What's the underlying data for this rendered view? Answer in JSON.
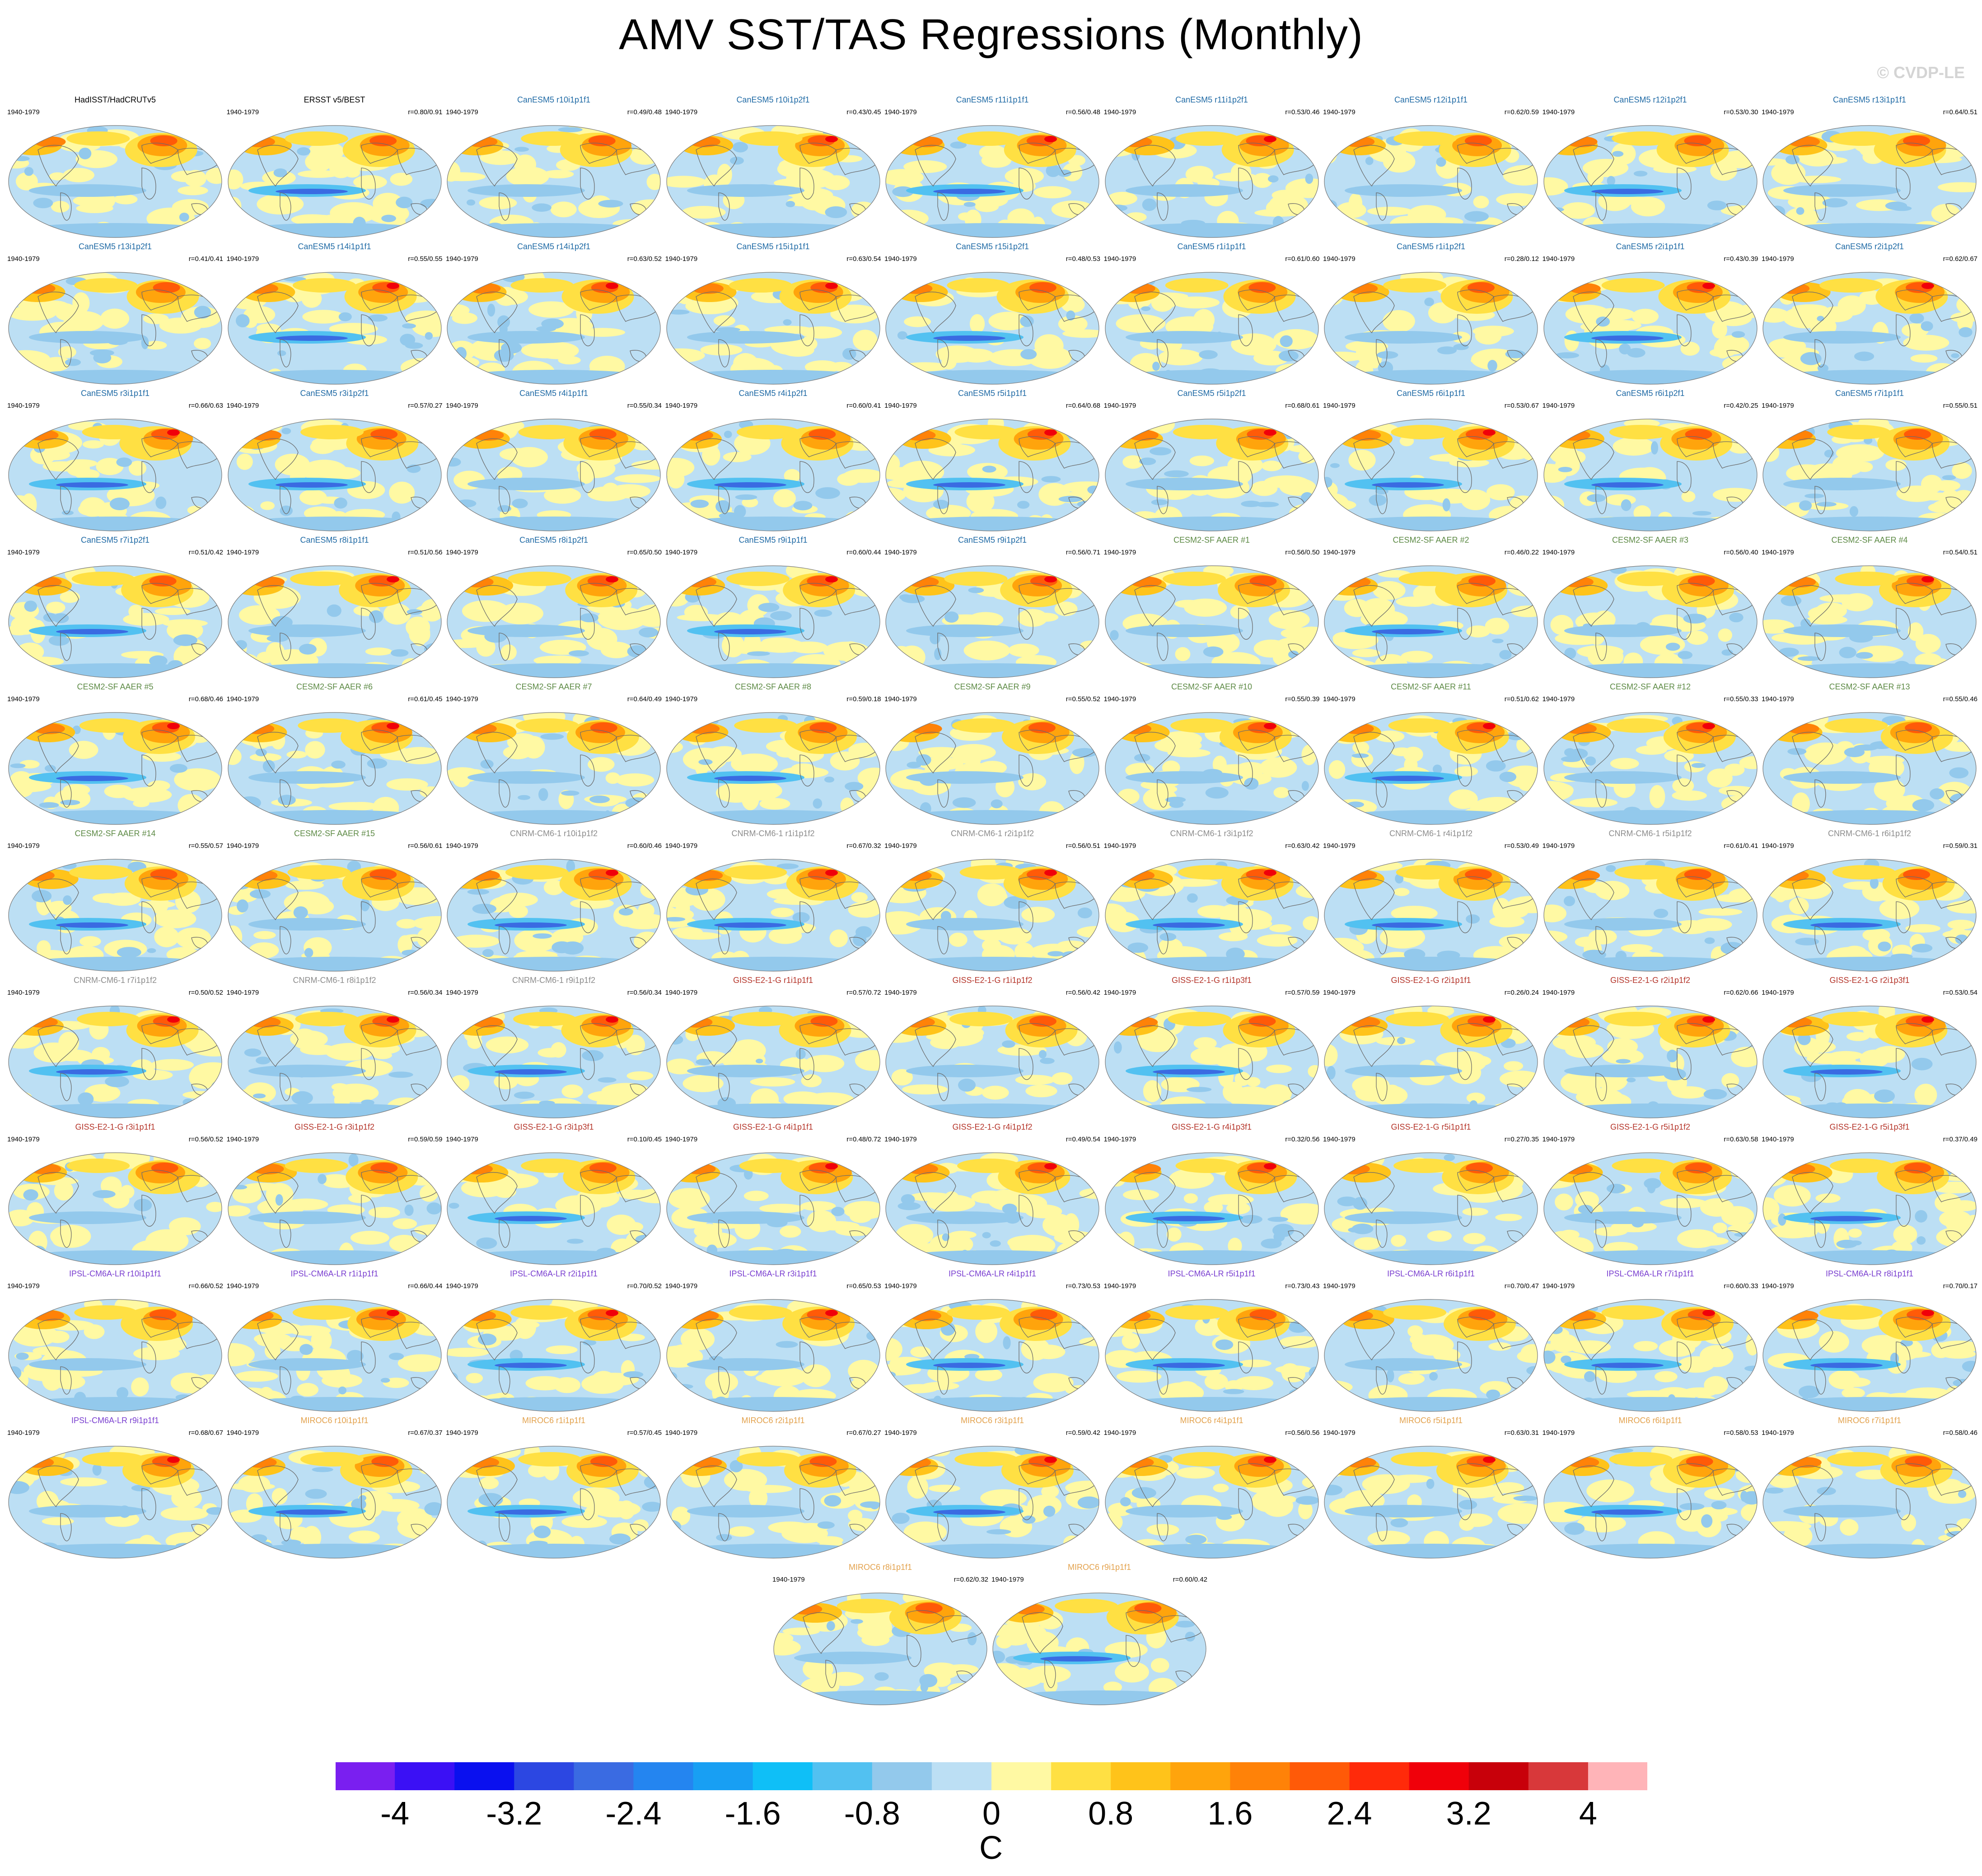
{
  "title": "AMV SST/TAS Regressions (Monthly)",
  "watermark": "© CVDP-LE",
  "period": "1940-1979",
  "model_colors": {
    "obs": "#000000",
    "CanESM5": "#1f6aa5",
    "CESM2-SF AAER": "#5d8a45",
    "CNRM-CM6-1": "#8c8c8c",
    "GISS-E2-1-G": "#b5352a",
    "IPSL-CM6A-LR": "#7a3fd0",
    "MIROC6": "#e3a24d"
  },
  "chart_data": {
    "type": "heatmap",
    "description_units": "C",
    "colorbar": {
      "units": "C",
      "tick_labels": [
        "-4",
        "-3.2",
        "-2.4",
        "-1.6",
        "-0.8",
        "0",
        "0.8",
        "1.6",
        "2.4",
        "3.2",
        "4"
      ],
      "tick_values": [
        -4,
        -3.2,
        -2.4,
        -1.6,
        -0.8,
        0,
        0.8,
        1.6,
        2.4,
        3.2,
        4
      ],
      "levels": [
        -4.4,
        -4,
        -3.6,
        -3.2,
        -2.8,
        -2.4,
        -2,
        -1.6,
        -1.2,
        -0.8,
        -0.4,
        0,
        0.4,
        0.8,
        1.2,
        1.6,
        2,
        2.4,
        2.8,
        3.2,
        3.6,
        4,
        4.4
      ],
      "colors": [
        "#7a1ff0",
        "#3b10f5",
        "#0a10ef",
        "#2c47e2",
        "#3a6be2",
        "#2485f0",
        "#189ff3",
        "#0fbff7",
        "#52c1f1",
        "#93c9ec",
        "#bcdff4",
        "#fff9a3",
        "#ffe043",
        "#ffc31a",
        "#ffa40c",
        "#ff8208",
        "#ff5a08",
        "#ff2a0a",
        "#f0000a",
        "#c8000a",
        "#d8383a",
        "#ffb4b8"
      ]
    },
    "panels": [
      {
        "title": "HadISST/HadCRUTv5",
        "model": "obs",
        "corr": ""
      },
      {
        "title": "ERSST v5/BEST",
        "model": "obs",
        "corr": "r=0.80/0.91"
      },
      {
        "title": "CanESM5 r10i1p1f1",
        "model": "CanESM5",
        "corr": "r=0.49/0.48"
      },
      {
        "title": "CanESM5 r10i1p2f1",
        "model": "CanESM5",
        "corr": "r=0.43/0.45"
      },
      {
        "title": "CanESM5 r11i1p1f1",
        "model": "CanESM5",
        "corr": "r=0.56/0.48"
      },
      {
        "title": "CanESM5 r11i1p2f1",
        "model": "CanESM5",
        "corr": "r=0.53/0.46"
      },
      {
        "title": "CanESM5 r12i1p1f1",
        "model": "CanESM5",
        "corr": "r=0.62/0.59"
      },
      {
        "title": "CanESM5 r12i1p2f1",
        "model": "CanESM5",
        "corr": "r=0.53/0.30"
      },
      {
        "title": "CanESM5 r13i1p1f1",
        "model": "CanESM5",
        "corr": "r=0.64/0.51"
      },
      {
        "title": "CanESM5 r13i1p2f1",
        "model": "CanESM5",
        "corr": "r=0.41/0.41"
      },
      {
        "title": "CanESM5 r14i1p1f1",
        "model": "CanESM5",
        "corr": "r=0.55/0.55"
      },
      {
        "title": "CanESM5 r14i1p2f1",
        "model": "CanESM5",
        "corr": "r=0.63/0.52"
      },
      {
        "title": "CanESM5 r15i1p1f1",
        "model": "CanESM5",
        "corr": "r=0.63/0.54"
      },
      {
        "title": "CanESM5 r15i1p2f1",
        "model": "CanESM5",
        "corr": "r=0.48/0.53"
      },
      {
        "title": "CanESM5 r1i1p1f1",
        "model": "CanESM5",
        "corr": "r=0.61/0.60"
      },
      {
        "title": "CanESM5 r1i1p2f1",
        "model": "CanESM5",
        "corr": "r=0.28/0.12"
      },
      {
        "title": "CanESM5 r2i1p1f1",
        "model": "CanESM5",
        "corr": "r=0.43/0.39"
      },
      {
        "title": "CanESM5 r2i1p2f1",
        "model": "CanESM5",
        "corr": "r=0.62/0.67"
      },
      {
        "title": "CanESM5 r3i1p1f1",
        "model": "CanESM5",
        "corr": "r=0.66/0.63"
      },
      {
        "title": "CanESM5 r3i1p2f1",
        "model": "CanESM5",
        "corr": "r=0.57/0.27"
      },
      {
        "title": "CanESM5 r4i1p1f1",
        "model": "CanESM5",
        "corr": "r=0.55/0.34"
      },
      {
        "title": "CanESM5 r4i1p2f1",
        "model": "CanESM5",
        "corr": "r=0.60/0.41"
      },
      {
        "title": "CanESM5 r5i1p1f1",
        "model": "CanESM5",
        "corr": "r=0.64/0.68"
      },
      {
        "title": "CanESM5 r5i1p2f1",
        "model": "CanESM5",
        "corr": "r=0.68/0.61"
      },
      {
        "title": "CanESM5 r6i1p1f1",
        "model": "CanESM5",
        "corr": "r=0.53/0.67"
      },
      {
        "title": "CanESM5 r6i1p2f1",
        "model": "CanESM5",
        "corr": "r=0.42/0.25"
      },
      {
        "title": "CanESM5 r7i1p1f1",
        "model": "CanESM5",
        "corr": "r=0.55/0.51"
      },
      {
        "title": "CanESM5 r7i1p2f1",
        "model": "CanESM5",
        "corr": "r=0.51/0.42"
      },
      {
        "title": "CanESM5 r8i1p1f1",
        "model": "CanESM5",
        "corr": "r=0.51/0.56"
      },
      {
        "title": "CanESM5 r8i1p2f1",
        "model": "CanESM5",
        "corr": "r=0.65/0.50"
      },
      {
        "title": "CanESM5 r9i1p1f1",
        "model": "CanESM5",
        "corr": "r=0.60/0.44"
      },
      {
        "title": "CanESM5 r9i1p2f1",
        "model": "CanESM5",
        "corr": "r=0.56/0.71"
      },
      {
        "title": "CESM2-SF AAER #1",
        "model": "CESM2-SF AAER",
        "corr": "r=0.56/0.50"
      },
      {
        "title": "CESM2-SF AAER #2",
        "model": "CESM2-SF AAER",
        "corr": "r=0.46/0.22"
      },
      {
        "title": "CESM2-SF AAER #3",
        "model": "CESM2-SF AAER",
        "corr": "r=0.56/0.40"
      },
      {
        "title": "CESM2-SF AAER #4",
        "model": "CESM2-SF AAER",
        "corr": "r=0.54/0.51"
      },
      {
        "title": "CESM2-SF AAER #5",
        "model": "CESM2-SF AAER",
        "corr": "r=0.68/0.46"
      },
      {
        "title": "CESM2-SF AAER #6",
        "model": "CESM2-SF AAER",
        "corr": "r=0.61/0.45"
      },
      {
        "title": "CESM2-SF AAER #7",
        "model": "CESM2-SF AAER",
        "corr": "r=0.64/0.49"
      },
      {
        "title": "CESM2-SF AAER #8",
        "model": "CESM2-SF AAER",
        "corr": "r=0.59/0.18"
      },
      {
        "title": "CESM2-SF AAER #9",
        "model": "CESM2-SF AAER",
        "corr": "r=0.55/0.52"
      },
      {
        "title": "CESM2-SF AAER #10",
        "model": "CESM2-SF AAER",
        "corr": "r=0.55/0.39"
      },
      {
        "title": "CESM2-SF AAER #11",
        "model": "CESM2-SF AAER",
        "corr": "r=0.51/0.62"
      },
      {
        "title": "CESM2-SF AAER #12",
        "model": "CESM2-SF AAER",
        "corr": "r=0.55/0.33"
      },
      {
        "title": "CESM2-SF AAER #13",
        "model": "CESM2-SF AAER",
        "corr": "r=0.55/0.46"
      },
      {
        "title": "CESM2-SF AAER #14",
        "model": "CESM2-SF AAER",
        "corr": "r=0.55/0.57"
      },
      {
        "title": "CESM2-SF AAER #15",
        "model": "CESM2-SF AAER",
        "corr": "r=0.56/0.61"
      },
      {
        "title": "CNRM-CM6-1 r10i1p1f2",
        "model": "CNRM-CM6-1",
        "corr": "r=0.60/0.46"
      },
      {
        "title": "CNRM-CM6-1 r1i1p1f2",
        "model": "CNRM-CM6-1",
        "corr": "r=0.67/0.32"
      },
      {
        "title": "CNRM-CM6-1 r2i1p1f2",
        "model": "CNRM-CM6-1",
        "corr": "r=0.56/0.51"
      },
      {
        "title": "CNRM-CM6-1 r3i1p1f2",
        "model": "CNRM-CM6-1",
        "corr": "r=0.63/0.42"
      },
      {
        "title": "CNRM-CM6-1 r4i1p1f2",
        "model": "CNRM-CM6-1",
        "corr": "r=0.53/0.49"
      },
      {
        "title": "CNRM-CM6-1 r5i1p1f2",
        "model": "CNRM-CM6-1",
        "corr": "r=0.61/0.41"
      },
      {
        "title": "CNRM-CM6-1 r6i1p1f2",
        "model": "CNRM-CM6-1",
        "corr": "r=0.59/0.31"
      },
      {
        "title": "CNRM-CM6-1 r7i1p1f2",
        "model": "CNRM-CM6-1",
        "corr": "r=0.50/0.52"
      },
      {
        "title": "CNRM-CM6-1 r8i1p1f2",
        "model": "CNRM-CM6-1",
        "corr": "r=0.56/0.34"
      },
      {
        "title": "CNRM-CM6-1 r9i1p1f2",
        "model": "CNRM-CM6-1",
        "corr": "r=0.56/0.34"
      },
      {
        "title": "GISS-E2-1-G r1i1p1f1",
        "model": "GISS-E2-1-G",
        "corr": "r=0.57/0.72"
      },
      {
        "title": "GISS-E2-1-G r1i1p1f2",
        "model": "GISS-E2-1-G",
        "corr": "r=0.56/0.42"
      },
      {
        "title": "GISS-E2-1-G r1i1p3f1",
        "model": "GISS-E2-1-G",
        "corr": "r=0.57/0.59"
      },
      {
        "title": "GISS-E2-1-G r2i1p1f1",
        "model": "GISS-E2-1-G",
        "corr": "r=0.26/0.24"
      },
      {
        "title": "GISS-E2-1-G r2i1p1f2",
        "model": "GISS-E2-1-G",
        "corr": "r=0.62/0.66"
      },
      {
        "title": "GISS-E2-1-G r2i1p3f1",
        "model": "GISS-E2-1-G",
        "corr": "r=0.53/0.54"
      },
      {
        "title": "GISS-E2-1-G r3i1p1f1",
        "model": "GISS-E2-1-G",
        "corr": "r=0.56/0.52"
      },
      {
        "title": "GISS-E2-1-G r3i1p1f2",
        "model": "GISS-E2-1-G",
        "corr": "r=0.59/0.59"
      },
      {
        "title": "GISS-E2-1-G r3i1p3f1",
        "model": "GISS-E2-1-G",
        "corr": "r=0.10/0.45"
      },
      {
        "title": "GISS-E2-1-G r4i1p1f1",
        "model": "GISS-E2-1-G",
        "corr": "r=0.48/0.72"
      },
      {
        "title": "GISS-E2-1-G r4i1p1f2",
        "model": "GISS-E2-1-G",
        "corr": "r=0.49/0.54"
      },
      {
        "title": "GISS-E2-1-G r4i1p3f1",
        "model": "GISS-E2-1-G",
        "corr": "r=0.32/0.56"
      },
      {
        "title": "GISS-E2-1-G r5i1p1f1",
        "model": "GISS-E2-1-G",
        "corr": "r=0.27/0.35"
      },
      {
        "title": "GISS-E2-1-G r5i1p1f2",
        "model": "GISS-E2-1-G",
        "corr": "r=0.63/0.58"
      },
      {
        "title": "GISS-E2-1-G r5i1p3f1",
        "model": "GISS-E2-1-G",
        "corr": "r=0.37/0.49"
      },
      {
        "title": "IPSL-CM6A-LR r10i1p1f1",
        "model": "IPSL-CM6A-LR",
        "corr": "r=0.66/0.52"
      },
      {
        "title": "IPSL-CM6A-LR r1i1p1f1",
        "model": "IPSL-CM6A-LR",
        "corr": "r=0.66/0.44"
      },
      {
        "title": "IPSL-CM6A-LR r2i1p1f1",
        "model": "IPSL-CM6A-LR",
        "corr": "r=0.70/0.52"
      },
      {
        "title": "IPSL-CM6A-LR r3i1p1f1",
        "model": "IPSL-CM6A-LR",
        "corr": "r=0.65/0.53"
      },
      {
        "title": "IPSL-CM6A-LR r4i1p1f1",
        "model": "IPSL-CM6A-LR",
        "corr": "r=0.73/0.53"
      },
      {
        "title": "IPSL-CM6A-LR r5i1p1f1",
        "model": "IPSL-CM6A-LR",
        "corr": "r=0.73/0.43"
      },
      {
        "title": "IPSL-CM6A-LR r6i1p1f1",
        "model": "IPSL-CM6A-LR",
        "corr": "r=0.70/0.47"
      },
      {
        "title": "IPSL-CM6A-LR r7i1p1f1",
        "model": "IPSL-CM6A-LR",
        "corr": "r=0.60/0.33"
      },
      {
        "title": "IPSL-CM6A-LR r8i1p1f1",
        "model": "IPSL-CM6A-LR",
        "corr": "r=0.70/0.17"
      },
      {
        "title": "IPSL-CM6A-LR r9i1p1f1",
        "model": "IPSL-CM6A-LR",
        "corr": "r=0.68/0.67"
      },
      {
        "title": "MIROC6 r10i1p1f1",
        "model": "MIROC6",
        "corr": "r=0.67/0.37"
      },
      {
        "title": "MIROC6 r1i1p1f1",
        "model": "MIROC6",
        "corr": "r=0.57/0.45"
      },
      {
        "title": "MIROC6 r2i1p1f1",
        "model": "MIROC6",
        "corr": "r=0.67/0.27"
      },
      {
        "title": "MIROC6 r3i1p1f1",
        "model": "MIROC6",
        "corr": "r=0.59/0.42"
      },
      {
        "title": "MIROC6 r4i1p1f1",
        "model": "MIROC6",
        "corr": "r=0.56/0.56"
      },
      {
        "title": "MIROC6 r5i1p1f1",
        "model": "MIROC6",
        "corr": "r=0.63/0.31"
      },
      {
        "title": "MIROC6 r6i1p1f1",
        "model": "MIROC6",
        "corr": "r=0.58/0.53"
      },
      {
        "title": "MIROC6 r7i1p1f1",
        "model": "MIROC6",
        "corr": "r=0.58/0.46"
      },
      {
        "title": "MIROC6 r8i1p1f1",
        "model": "MIROC6",
        "corr": "r=0.62/0.32"
      },
      {
        "title": "MIROC6 r9i1p1f1",
        "model": "MIROC6",
        "corr": "r=0.60/0.42"
      }
    ]
  }
}
